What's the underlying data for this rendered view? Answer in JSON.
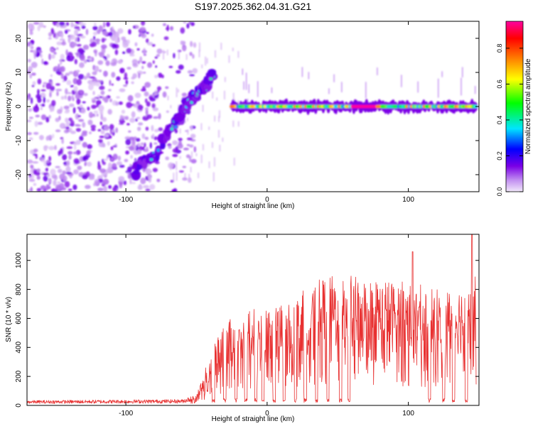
{
  "figure_title": "S197.2025.362.04.31.G21",
  "chart_data": [
    {
      "type": "heatmap",
      "title": "S197.2025.362.04.31.G21",
      "xlabel": "Height of straight line (km)",
      "ylabel": "Frequency (Hz)",
      "xlim": [
        -170,
        150
      ],
      "ylim": [
        -25,
        25
      ],
      "x_ticks": [
        -100,
        0,
        100
      ],
      "x_tick_labels": [
        "-100",
        "0",
        "100"
      ],
      "y_ticks": [
        -20,
        -10,
        0,
        10,
        20
      ],
      "y_tick_labels": [
        "-20",
        "-10",
        "0",
        "10",
        "20"
      ],
      "colorbar": {
        "label": "Normalized spectral amplitude",
        "range": [
          0,
          0.95
        ],
        "ticks": [
          0.0,
          0.2,
          0.4,
          0.6,
          0.8
        ],
        "tick_labels": [
          "0.0",
          "0.2",
          "0.4",
          "0.6",
          "0.8"
        ],
        "colors": [
          "#e0c8f4",
          "#7a00e6",
          "#0000ff",
          "#00e5ff",
          "#00ff00",
          "#ffff00",
          "#ff8000",
          "#ff0000",
          "#ff00a0"
        ]
      },
      "features": [
        {
          "name": "diffuse noise region",
          "x_range": [
            -170,
            -75
          ],
          "freq_range": [
            -25,
            25
          ],
          "amplitude": 0.1
        },
        {
          "name": "descending ramp",
          "points": [
            [
              -95,
              -19
            ],
            [
              -80,
              -14
            ],
            [
              -65,
              -5
            ],
            [
              -55,
              2
            ],
            [
              -45,
              5
            ],
            [
              -38,
              9
            ]
          ],
          "amplitude": 0.3
        },
        {
          "name": "steady line",
          "x_range": [
            -25,
            148
          ],
          "freq": 0,
          "amplitude": 0.75,
          "peak_x_range": [
            60,
            78
          ],
          "peak_amplitude": 0.95
        }
      ]
    },
    {
      "type": "line",
      "xlabel": "Height of straight line (km)",
      "ylabel": "SNR (10 * v/v)",
      "xlim": [
        -170,
        150
      ],
      "ylim": [
        0,
        1180
      ],
      "x_ticks": [
        -100,
        0,
        100
      ],
      "x_tick_labels": [
        "-100",
        "0",
        "100"
      ],
      "y_ticks": [
        0,
        200,
        400,
        600,
        800,
        1000
      ],
      "y_tick_labels": [
        "0",
        "200",
        "400",
        "600",
        "800",
        "1000"
      ],
      "series": [
        {
          "name": "SNR",
          "color": "#e83030",
          "envelope": [
            {
              "x": -170,
              "snr": 25
            },
            {
              "x": -60,
              "snr": 30
            },
            {
              "x": -50,
              "snr": 60
            },
            {
              "x": -40,
              "snr": 280
            },
            {
              "x": -30,
              "snr": 450
            },
            {
              "x": -20,
              "snr": 480
            },
            {
              "x": -10,
              "snr": 520
            },
            {
              "x": 0,
              "snr": 500
            },
            {
              "x": 10,
              "snr": 540
            },
            {
              "x": 20,
              "snr": 580
            },
            {
              "x": 30,
              "snr": 640
            },
            {
              "x": 40,
              "snr": 680
            },
            {
              "x": 50,
              "snr": 700
            },
            {
              "x": 60,
              "snr": 690
            },
            {
              "x": 70,
              "snr": 680
            },
            {
              "x": 80,
              "snr": 670
            },
            {
              "x": 90,
              "snr": 660
            },
            {
              "x": 100,
              "snr": 660
            },
            {
              "x": 110,
              "snr": 640
            },
            {
              "x": 120,
              "snr": 640
            },
            {
              "x": 130,
              "snr": 620
            },
            {
              "x": 140,
              "snr": 650
            },
            {
              "x": 148,
              "snr": 700
            }
          ],
          "notable_peaks": [
            {
              "x": 103,
              "snr": 1060
            },
            {
              "x": 145,
              "snr": 1180
            }
          ],
          "notable_dropouts": [
            -38,
            -30,
            -22,
            -15,
            -8,
            -3,
            5,
            12,
            20,
            27,
            35,
            43,
            52,
            58,
            115,
            125,
            132,
            141
          ]
        }
      ]
    }
  ]
}
